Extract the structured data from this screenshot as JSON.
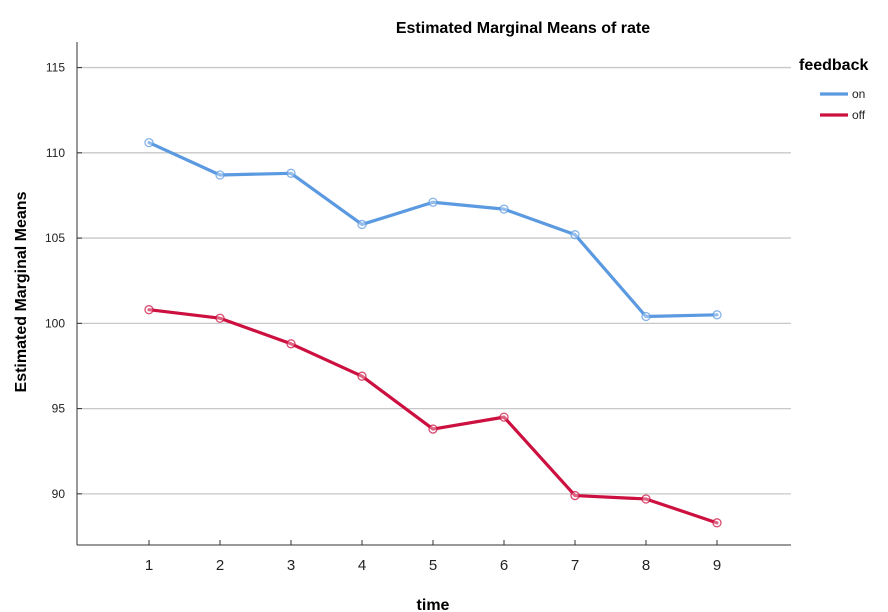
{
  "chart_data": {
    "type": "line",
    "title": "Estimated Marginal Means of rate",
    "xlabel": "time",
    "ylabel": "Estimated Marginal Means",
    "categories": [
      "1",
      "2",
      "3",
      "4",
      "5",
      "6",
      "7",
      "8",
      "9"
    ],
    "ylim": [
      87,
      116.5
    ],
    "yticks": [
      90,
      95,
      100,
      105,
      110,
      115
    ],
    "grid": true,
    "legend_title": "feedback",
    "legend_position": "top-right",
    "markers": true,
    "series": [
      {
        "name": "on",
        "color": "#5b9ae0",
        "values": [
          110.6,
          108.7,
          108.8,
          105.8,
          107.1,
          106.7,
          105.2,
          100.4,
          100.5
        ]
      },
      {
        "name": "off",
        "color": "#cc1040",
        "values": [
          100.8,
          100.3,
          98.8,
          96.9,
          93.8,
          94.5,
          89.9,
          89.7,
          88.3
        ]
      }
    ]
  }
}
